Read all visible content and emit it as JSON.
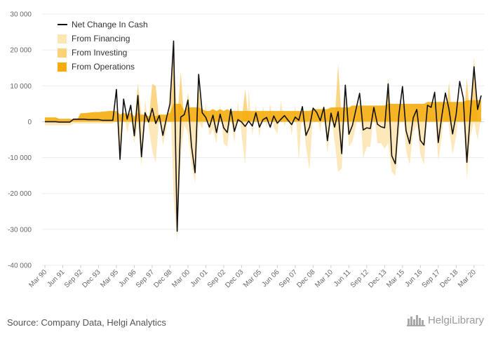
{
  "chart_data": {
    "type": "area",
    "title": "",
    "xlabel": "",
    "ylabel": "",
    "ylim": [
      -40000,
      30000
    ],
    "y_ticks": [
      30000,
      20000,
      10000,
      0,
      -10000,
      -20000,
      -30000,
      -40000
    ],
    "y_tick_labels": [
      "30 000",
      "20 000",
      "10 000",
      "0",
      "-10 000",
      "-20 000",
      "-30 000",
      "-40 000"
    ],
    "x_tick_labels": [
      "Mar 90",
      "Jun 91",
      "Sep 92",
      "Dec 93",
      "Mar 95",
      "Jun 96",
      "Sep 97",
      "Dec 98",
      "Mar 00",
      "Jun 01",
      "Sep 02",
      "Dec 03",
      "Mar 05",
      "Jun 06",
      "Sep 07",
      "Dec 08",
      "Mar 10",
      "Jun 11",
      "Sep 12",
      "Dec 13",
      "Mar 15",
      "Jun 16",
      "Sep 17",
      "Dec 18",
      "Mar 20"
    ],
    "x_tick_quarter_index": [
      0,
      5,
      10,
      15,
      20,
      25,
      30,
      35,
      40,
      45,
      50,
      55,
      60,
      65,
      70,
      75,
      80,
      85,
      90,
      95,
      100,
      105,
      110,
      115,
      120
    ],
    "legend": [
      "Net Change In Cash",
      "From Financing",
      "From Investing",
      "From Operations"
    ],
    "colors": {
      "net": "#111111",
      "financing": "#fde6b4",
      "investing": "#fbd27a",
      "operations": "#f5ad0e"
    },
    "series": [
      {
        "name": "Net Change In Cash",
        "values": [
          0,
          0,
          0,
          0,
          -100,
          -100,
          -100,
          -100,
          700,
          700,
          700,
          700,
          600,
          600,
          600,
          600,
          400,
          400,
          400,
          400,
          9000,
          -10500,
          6300,
          700,
          4600,
          -3900,
          7300,
          -9800,
          2500,
          -100,
          3700,
          -500,
          1700,
          -3800,
          1000,
          5000,
          22500,
          -30500,
          1300,
          2000,
          6000,
          -6800,
          -14200,
          13200,
          2500,
          1200,
          -1500,
          1800,
          -3000,
          2100,
          -1700,
          -3000,
          3500,
          -2700,
          600,
          -100,
          -1300,
          200,
          -1200,
          2500,
          -1500,
          600,
          1200,
          -1500,
          1600,
          -400,
          700,
          1700,
          400,
          -800,
          1300,
          400,
          4200,
          -3800,
          -1500,
          3800,
          2600,
          300,
          4000,
          -5300,
          2400,
          -1500,
          2800,
          -8900,
          10200,
          -3500,
          -1000,
          3500,
          7900,
          -2300,
          -1700,
          -1900,
          4000,
          -700,
          -1400,
          -1700,
          10500,
          -9500,
          -11700,
          2000,
          9800,
          -2500,
          -6100,
          1100,
          3400,
          -5200,
          -6500,
          4600,
          4000,
          8200,
          -5800,
          1600,
          8000,
          3500,
          -3400,
          2000,
          11200,
          6600,
          -11300,
          2600,
          15300,
          3400,
          7300
        ]
      },
      {
        "name": "From Operations",
        "values": [
          1200,
          1200,
          1200,
          1200,
          800,
          800,
          800,
          800,
          600,
          600,
          2400,
          2400,
          2500,
          2600,
          2700,
          2700,
          2800,
          2900,
          3000,
          3000,
          3000,
          2000,
          2500,
          2000,
          2500,
          1500,
          2500,
          2000,
          2000,
          1500,
          2000,
          1500,
          2000,
          2000,
          2000,
          2500,
          5000,
          5000,
          5000,
          3000,
          4000,
          4000,
          4000,
          4000,
          3500,
          3000,
          3000,
          3500,
          3000,
          3500,
          3000,
          3500,
          3000,
          3000,
          3000,
          3000,
          3000,
          3000,
          3000,
          3000,
          3000,
          3000,
          3000,
          3000,
          3000,
          3000,
          3000,
          3000,
          3000,
          3000,
          3000,
          3000,
          3000,
          3000,
          3000,
          3500,
          3500,
          3500,
          3500,
          3500,
          4000,
          4000,
          4000,
          4000,
          4000,
          4000,
          4500,
          4500,
          4500,
          4500,
          4500,
          4500,
          4500,
          4500,
          4500,
          4500,
          5000,
          5000,
          5000,
          5000,
          5000,
          5000,
          5000,
          5000,
          5000,
          5000,
          5000,
          5500,
          5500,
          5500,
          5500,
          5500,
          5500,
          5500,
          5500,
          5500,
          5500,
          5500,
          6000,
          6000,
          6000,
          6000,
          6000
        ]
      },
      {
        "name": "From Investing",
        "values": [
          0,
          0,
          0,
          0,
          0,
          0,
          0,
          0,
          0,
          0,
          0,
          0,
          0,
          0,
          0,
          0,
          0,
          0,
          0,
          0,
          0,
          0,
          0,
          0,
          0,
          0,
          10500,
          1500,
          0,
          0,
          10500,
          10000,
          0,
          0,
          0,
          0,
          19000,
          0,
          14000,
          0,
          8000,
          0,
          0,
          10000,
          0,
          0,
          0,
          0,
          0,
          0,
          0,
          0,
          0,
          0,
          0,
          0,
          9000,
          0,
          0,
          0,
          0,
          0,
          0,
          0,
          0,
          0,
          0,
          0,
          0,
          0,
          0,
          0,
          0,
          0,
          0,
          0,
          0,
          0,
          0,
          0,
          0,
          0,
          16000,
          0,
          0,
          0,
          0,
          0,
          0,
          0,
          0,
          0,
          0,
          0,
          0,
          0,
          12000,
          0,
          0,
          0,
          0,
          0,
          0,
          0,
          0,
          0,
          0,
          0,
          0,
          0,
          0,
          0,
          0,
          11000,
          0,
          0,
          0,
          0,
          12000,
          0,
          18000,
          0,
          0
        ]
      },
      {
        "name": "From Financing",
        "values": [
          -1000,
          -1000,
          -1000,
          -1000,
          -1000,
          -1000,
          -1000,
          -1000,
          -500,
          -500,
          -500,
          -500,
          -500,
          -500,
          -500,
          -500,
          -500,
          -500,
          -500,
          -500,
          2000,
          -11000,
          3000,
          -3000,
          1500,
          -6000,
          0,
          -12500,
          6500,
          -1500,
          -8000,
          -11500,
          2000,
          -6500,
          -2000,
          10000,
          -21000,
          -33000,
          -9000,
          -1000,
          -3000,
          -12000,
          -17000,
          0,
          -2000,
          5000,
          -4000,
          -2000,
          -6000,
          5000,
          -6000,
          -7000,
          1000,
          -6000,
          5500,
          -3500,
          -12000,
          9000,
          -4000,
          5000,
          -4500,
          4500,
          -1500,
          5000,
          -1500,
          -3500,
          6000,
          -1500,
          3000,
          -4000,
          5000,
          -11000,
          4000,
          -7000,
          -13500,
          3000,
          3000,
          -3000,
          5000,
          -9000,
          2000,
          -5500,
          -14000,
          -13000,
          7000,
          -7000,
          -5500,
          -1000,
          6000,
          -10000,
          -7000,
          -7000,
          3000,
          -6000,
          -6000,
          -7500,
          -6000,
          -14000,
          -15000,
          -4000,
          6000,
          -8000,
          -12000,
          -3000,
          -1000,
          -9000,
          -12000,
          4000,
          1000,
          3500,
          -11000,
          -4000,
          7000,
          -1500,
          -9000,
          -4000,
          4500,
          1500,
          -16000,
          -4000,
          0,
          -5000,
          1500
        ]
      }
    ]
  },
  "footer": {
    "source": "Source: Company Data, Helgi Analytics",
    "logo_text": "HelgiLibrary"
  }
}
